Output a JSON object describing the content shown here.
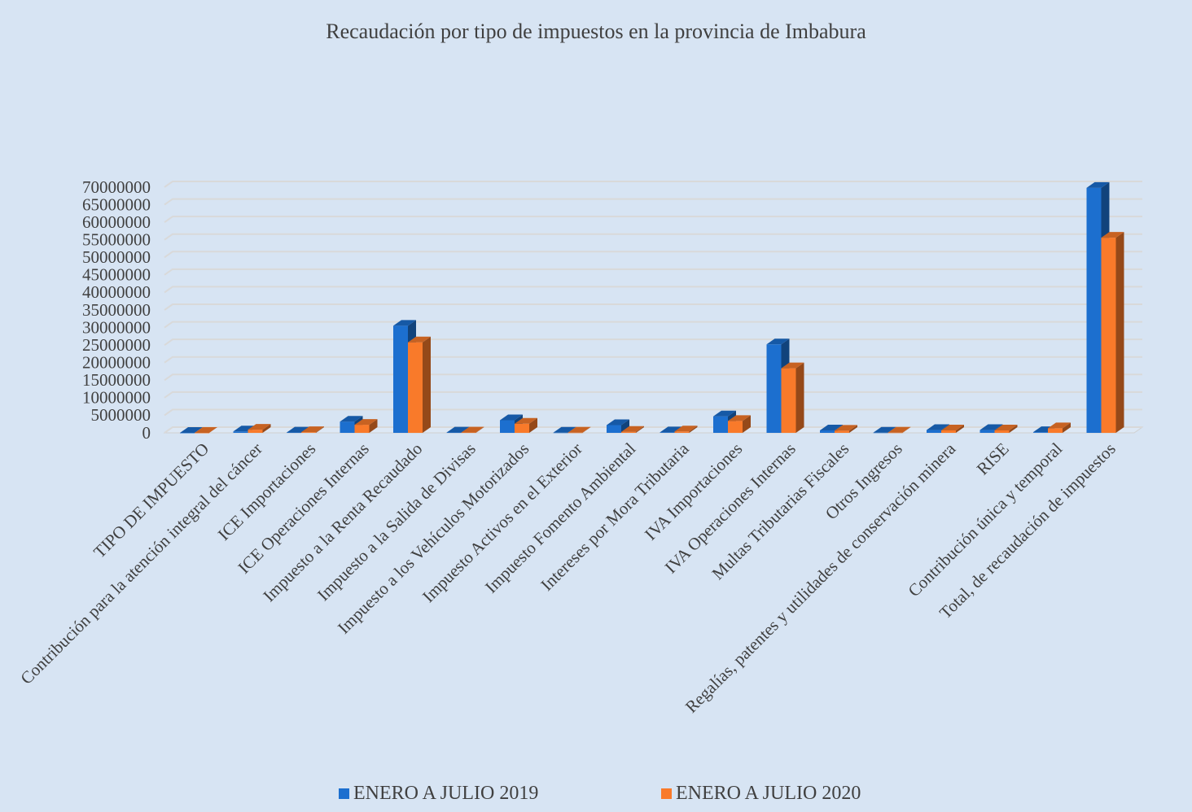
{
  "chart_data": {
    "type": "bar",
    "title": "Recaudación por tipo de impuestos en la provincia de Imbabura",
    "xlabel": "",
    "ylabel": "",
    "ylim": [
      0,
      70000000
    ],
    "y_ticks": [
      0,
      5000000,
      10000000,
      15000000,
      20000000,
      25000000,
      30000000,
      35000000,
      40000000,
      45000000,
      50000000,
      55000000,
      60000000,
      65000000,
      70000000
    ],
    "y_tick_labels": [
      "0",
      "5000000",
      "10000000",
      "15000000",
      "20000000",
      "25000000",
      "30000000",
      "35000000",
      "40000000",
      "45000000",
      "50000000",
      "55000000",
      "60000000",
      "65000000",
      "70000000"
    ],
    "grid": true,
    "legend_position": "bottom",
    "categories": [
      "TIPO DE IMPUESTO",
      "Contribución para la atención integral del cáncer",
      "ICE Importaciones",
      "ICE Operaciones Internas",
      "Impuesto a la Renta Recaudado",
      "Impuesto a la Salida de Divisas",
      "Impuesto a los Vehículos Motorizados",
      "Impuesto Activos en el Exterior",
      "Impuesto Fomento Ambiental",
      "Intereses por Mora Tributaria",
      "IVA Importaciones",
      "IVA Operaciones Internas",
      "Multas Tributarias Fiscales",
      "Otros Ingresos",
      "Regalías, patentes y utilidades de conservación minera",
      "RISE",
      "Contribución única y temporal",
      "Total, de recaudación de impuestos"
    ],
    "series": [
      {
        "name": "ENERO A JULIO 2019",
        "color": "#1c6fcf",
        "values": [
          0,
          400000,
          100000,
          3200000,
          30500000,
          100000,
          3600000,
          50000,
          2200000,
          150000,
          4700000,
          25200000,
          700000,
          50000,
          800000,
          800000,
          200000,
          69800000
        ]
      },
      {
        "name": "ENERO A JULIO 2020",
        "color": "#f97a2a",
        "values": [
          0,
          900000,
          200000,
          2300000,
          25800000,
          100000,
          2600000,
          50000,
          300000,
          400000,
          3400000,
          18400000,
          600000,
          50000,
          700000,
          700000,
          1300000,
          55600000
        ]
      }
    ]
  }
}
